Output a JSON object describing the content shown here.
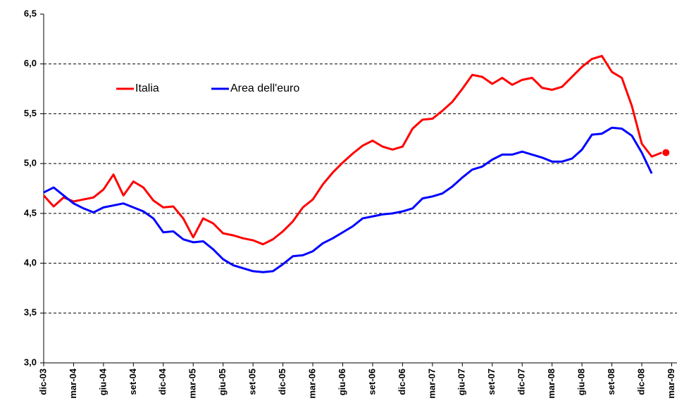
{
  "chart_data": {
    "type": "line",
    "categories": [
      "dic-03",
      null,
      null,
      "mar-04",
      null,
      null,
      "giu-04",
      null,
      null,
      "set-04",
      null,
      null,
      "dic-04",
      null,
      null,
      "mar-05",
      null,
      null,
      "giu-05",
      null,
      null,
      "set-05",
      null,
      null,
      "dic-05",
      null,
      null,
      "mar-06",
      null,
      null,
      "giu-06",
      null,
      null,
      "set-06",
      null,
      null,
      "dic-06",
      null,
      null,
      "mar-07",
      null,
      null,
      "giu-07",
      null,
      null,
      "set-07",
      null,
      null,
      "dic-07",
      null,
      null,
      "mar-08",
      null,
      null,
      "giu-08",
      null,
      null,
      "set-08",
      null,
      null,
      "dic-08",
      null,
      null,
      "mar-09"
    ],
    "series": [
      {
        "name": "Italia",
        "color": "#ff0000",
        "highlight_last": true,
        "values": [
          4.68,
          4.57,
          4.66,
          4.62,
          4.64,
          4.66,
          4.74,
          4.89,
          4.68,
          4.82,
          4.76,
          4.63,
          4.56,
          4.57,
          4.45,
          4.26,
          4.45,
          4.4,
          4.3,
          4.28,
          4.25,
          4.23,
          4.19,
          4.24,
          4.32,
          4.42,
          4.56,
          4.64,
          4.79,
          4.91,
          5.01,
          5.1,
          5.18,
          5.23,
          5.17,
          5.14,
          5.17,
          5.35,
          5.44,
          5.45,
          5.53,
          5.62,
          5.75,
          5.89,
          5.87,
          5.8,
          5.86,
          5.79,
          5.84,
          5.86,
          5.76,
          5.74,
          5.77,
          5.87,
          5.97,
          6.05,
          6.08,
          5.92,
          5.86,
          5.58,
          5.2,
          5.07,
          5.11,
          null
        ]
      },
      {
        "name": "Area dell'euro",
        "color": "#0000ff",
        "values": [
          4.71,
          4.76,
          4.68,
          4.6,
          4.55,
          4.51,
          4.56,
          4.58,
          4.6,
          4.56,
          4.52,
          4.45,
          4.31,
          4.32,
          4.24,
          4.21,
          4.22,
          4.14,
          4.04,
          3.98,
          3.95,
          3.92,
          3.91,
          3.92,
          3.99,
          4.07,
          4.08,
          4.12,
          4.2,
          4.25,
          4.31,
          4.37,
          4.45,
          4.47,
          4.49,
          4.5,
          4.52,
          4.55,
          4.65,
          4.67,
          4.7,
          4.77,
          4.86,
          4.94,
          4.97,
          5.04,
          5.09,
          5.09,
          5.12,
          5.09,
          5.06,
          5.02,
          5.02,
          5.05,
          5.14,
          5.29,
          5.3,
          5.36,
          5.35,
          5.28,
          5.11,
          4.9,
          null,
          null
        ]
      }
    ],
    "ylim": [
      3.0,
      6.5
    ],
    "yticks": [
      {
        "value": 3.0,
        "label": "3,0"
      },
      {
        "value": 3.5,
        "label": "3,5"
      },
      {
        "value": 4.0,
        "label": "4,0"
      },
      {
        "value": 4.5,
        "label": "4,5"
      },
      {
        "value": 5.0,
        "label": "5,0"
      },
      {
        "value": 5.5,
        "label": "5,5"
      },
      {
        "value": 6.0,
        "label": "6,0"
      },
      {
        "value": 6.5,
        "label": "6,5"
      }
    ],
    "grid": true,
    "legend": "upper left"
  }
}
